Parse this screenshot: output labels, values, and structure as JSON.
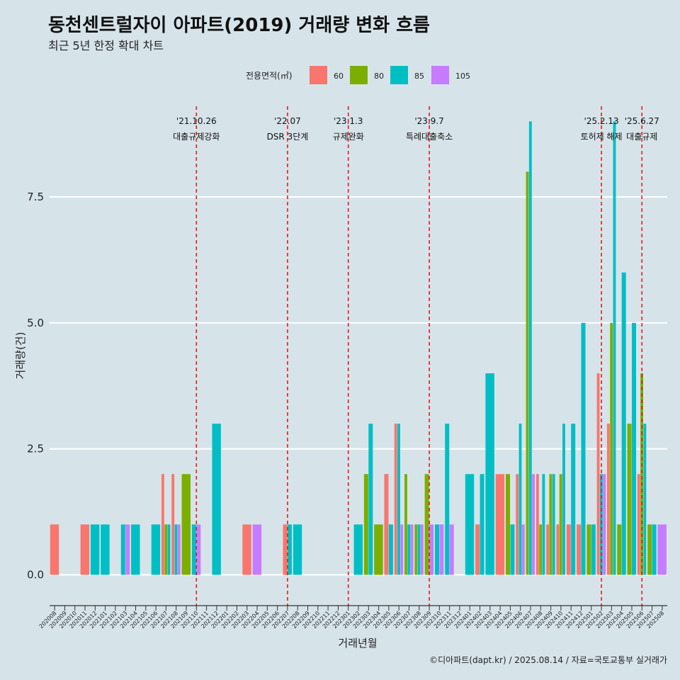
{
  "chart_data": {
    "type": "bar",
    "title": "동천센트럴자이 아파트(2019) 거래량 변화 흐름",
    "subtitle": "최근 5년 한정 확대 차트",
    "xlabel": "거래년월",
    "ylabel": "거래량(건)",
    "ylim": [
      -0.4,
      9.3
    ],
    "yticks": [
      0.0,
      2.5,
      5.0,
      7.5
    ],
    "ytick_labels": [
      "0.0",
      "2.5",
      "5.0",
      "7.5"
    ],
    "grid": true,
    "legend": {
      "title": "전용면적(㎡)",
      "placement": "top"
    },
    "caption": "©디아파트(dapt.kr) / 2025.08.14 / 자료=국토교통부 실거래가",
    "categories": [
      "202008",
      "202009",
      "202010",
      "202011",
      "202012",
      "202101",
      "202102",
      "202103",
      "202104",
      "202105",
      "202106",
      "202107",
      "202108",
      "202109",
      "202110",
      "202111",
      "202112",
      "202201",
      "202202",
      "202203",
      "202204",
      "202205",
      "202206",
      "202207",
      "202208",
      "202209",
      "202210",
      "202211",
      "202212",
      "202301",
      "202302",
      "202303",
      "202304",
      "202305",
      "202306",
      "202307",
      "202308",
      "202309",
      "202310",
      "202311",
      "202312",
      "202401",
      "202402",
      "202403",
      "202404",
      "202405",
      "202406",
      "202407",
      "202408",
      "202409",
      "202410",
      "202411",
      "202412",
      "202501",
      "202502",
      "202503",
      "202504",
      "202505",
      "202506",
      "202507",
      "202508"
    ],
    "series": [
      {
        "name": "60",
        "color": "#f8766d",
        "values": [
          1,
          0,
          0,
          1,
          0,
          0,
          0,
          0,
          0,
          0,
          0,
          2,
          2,
          0,
          0,
          0,
          0,
          0,
          0,
          1,
          0,
          0,
          0,
          1,
          0,
          0,
          0,
          0,
          0,
          0,
          0,
          0,
          0,
          2,
          3,
          0,
          0,
          0,
          0,
          0,
          0,
          0,
          1,
          0,
          2,
          0,
          2,
          0,
          2,
          1,
          1,
          1,
          1,
          0,
          4,
          3,
          0,
          0,
          2,
          0,
          0
        ]
      },
      {
        "name": "80",
        "color": "#7cae00",
        "values": [
          0,
          0,
          0,
          0,
          0,
          0,
          0,
          0,
          0,
          0,
          0,
          1,
          0,
          2,
          0,
          0,
          0,
          0,
          0,
          0,
          0,
          0,
          0,
          0,
          0,
          0,
          0,
          0,
          0,
          0,
          0,
          2,
          1,
          0,
          0,
          2,
          1,
          2,
          0,
          0,
          0,
          0,
          0,
          0,
          0,
          2,
          0,
          8,
          1,
          2,
          2,
          0,
          0,
          1,
          0,
          5,
          1,
          3,
          4,
          1,
          0
        ]
      },
      {
        "name": "85",
        "color": "#00bfc4",
        "values": [
          0,
          0,
          0,
          0,
          1,
          1,
          0,
          1,
          1,
          0,
          1,
          1,
          1,
          0,
          1,
          0,
          3,
          0,
          0,
          0,
          0,
          0,
          0,
          1,
          1,
          0,
          0,
          0,
          0,
          0,
          1,
          3,
          0,
          1,
          3,
          1,
          1,
          0,
          1,
          3,
          0,
          2,
          2,
          4,
          0,
          1,
          3,
          9,
          2,
          2,
          3,
          3,
          5,
          1,
          2,
          9,
          6,
          5,
          3,
          1,
          0
        ]
      },
      {
        "name": "105",
        "color": "#c77cff",
        "values": [
          0,
          0,
          0,
          0,
          0,
          0,
          0,
          1,
          0,
          0,
          0,
          0,
          1,
          0,
          1,
          0,
          0,
          0,
          0,
          0,
          1,
          0,
          0,
          0,
          0,
          0,
          0,
          0,
          0,
          0,
          0,
          0,
          0,
          0,
          1,
          1,
          1,
          1,
          1,
          1,
          0,
          0,
          0,
          0,
          0,
          0,
          1,
          2,
          0,
          0,
          0,
          0,
          0,
          0,
          2,
          0,
          0,
          0,
          0,
          0,
          1
        ]
      }
    ],
    "events": [
      {
        "date": "'21.10.26",
        "label": "대출규제강화",
        "category": "202110"
      },
      {
        "date": "'22.07",
        "label": "DSR 3단계",
        "category": "202207"
      },
      {
        "date": "'23.1.3",
        "label": "규제완화",
        "category": "202301"
      },
      {
        "date": "'23.9.7",
        "label": "특례대출축소",
        "category": "202309"
      },
      {
        "date": "'25.2.13",
        "label": "토허제 해제",
        "category": "202502"
      },
      {
        "date": "'25.6.27",
        "label": "대출규제",
        "category": "202506"
      }
    ]
  }
}
